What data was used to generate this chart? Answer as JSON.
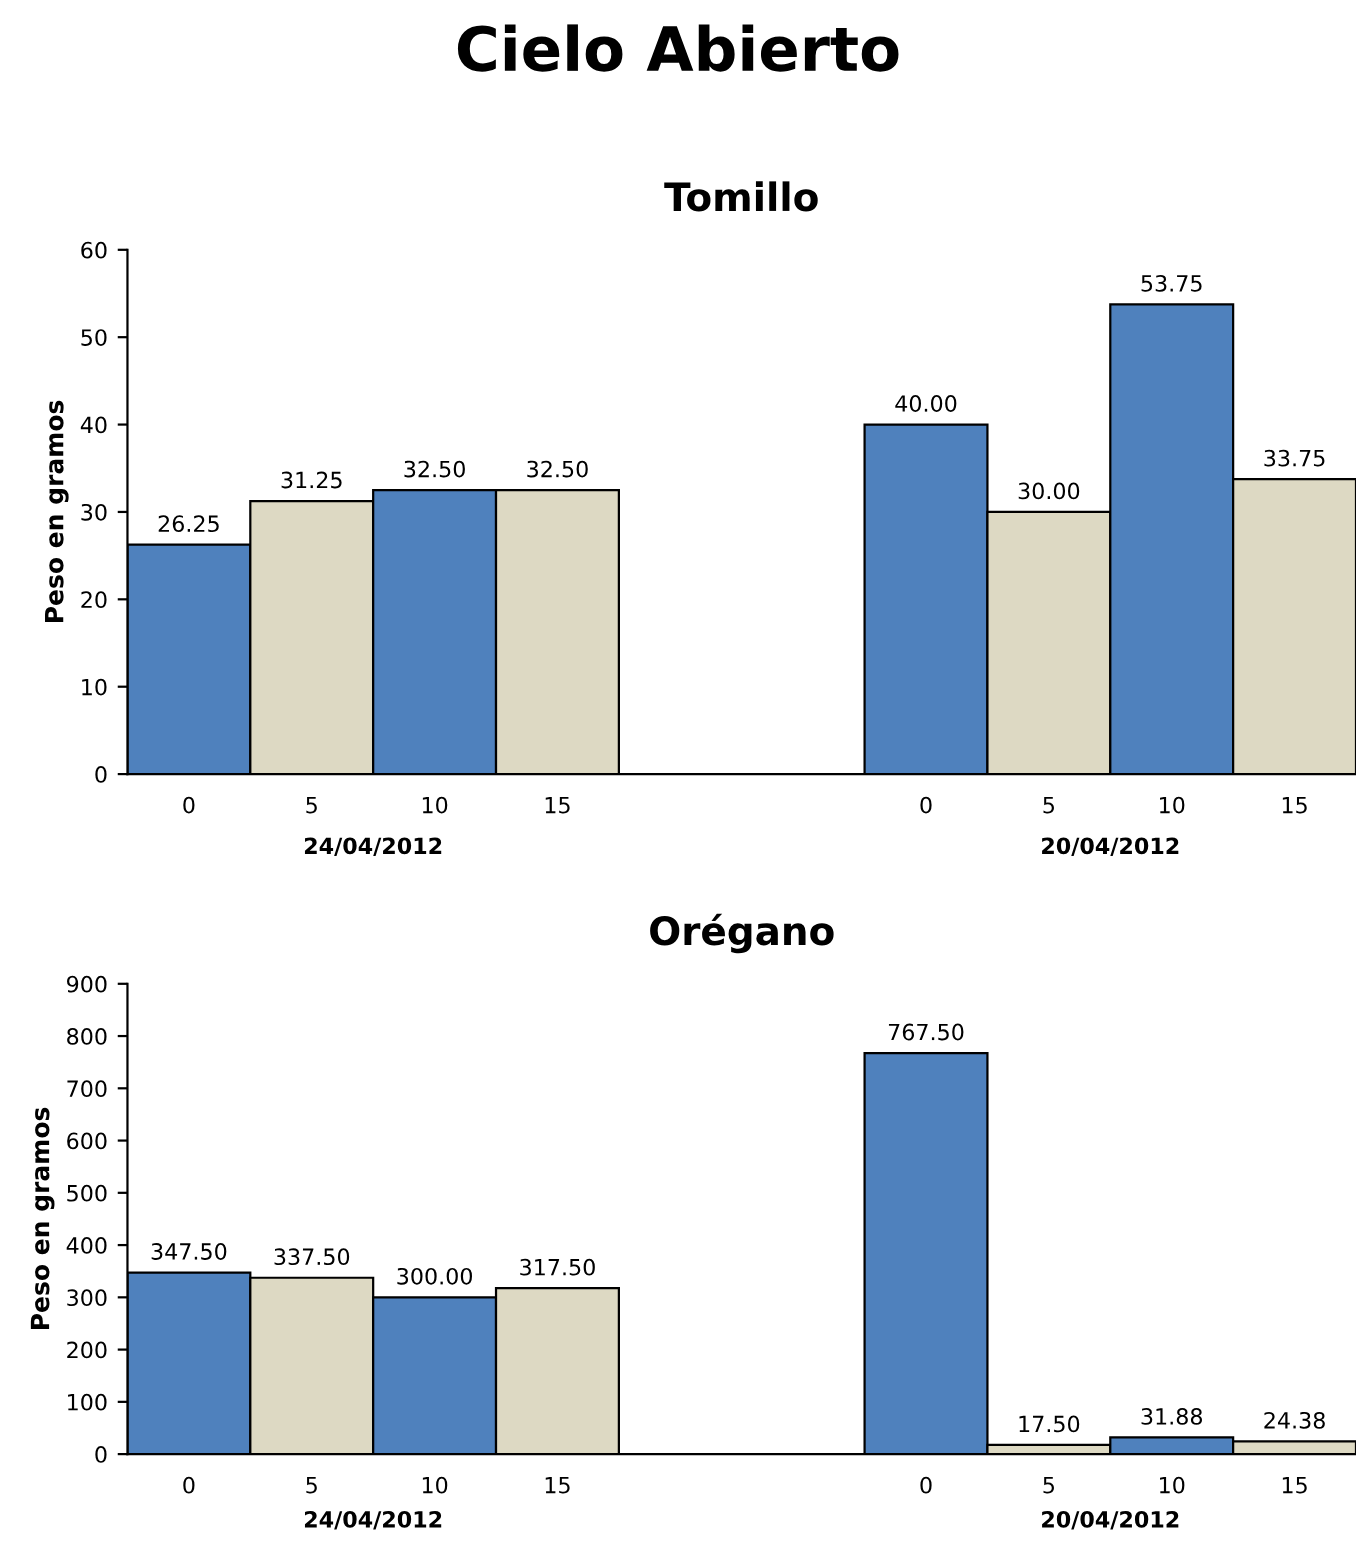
{
  "chart_data": [
    {
      "type": "bar",
      "title": "Tomillo",
      "ylabel": "Peso en gramos",
      "annotations": [
        "Cielo Abierto",
        "24/04/2012",
        "20/04/2012"
      ],
      "categories": [
        "0",
        "5",
        "10",
        "15",
        null,
        null,
        "0",
        "5",
        "10",
        "15"
      ],
      "values": [
        26.25,
        31.25,
        32.5,
        32.5,
        null,
        null,
        40,
        30,
        53.75,
        33.75
      ],
      "value_labels": [
        "26.25",
        "31.25",
        "32.50",
        "32.50",
        null,
        null,
        "40.00",
        "30.00",
        "53.75",
        "33.75"
      ],
      "colors": [
        "#4f81bd",
        "#ddd9c3",
        "#4f81bd",
        "#ddd9c3",
        null,
        null,
        "#4f81bd",
        "#ddd9c3",
        "#4f81bd",
        "#ddd9c3"
      ],
      "ylim": [
        0,
        60
      ],
      "yticks": [
        0,
        10,
        20,
        30,
        40,
        50,
        60
      ],
      "grid": false,
      "legend": false
    },
    {
      "type": "bar",
      "title": "Orégano",
      "ylabel": "Peso en gramos",
      "annotations": [
        "24/04/2012",
        "20/04/2012"
      ],
      "categories": [
        "0",
        "5",
        "10",
        "15",
        null,
        null,
        "0",
        "5",
        "10",
        "15"
      ],
      "values": [
        347.5,
        337.5,
        300,
        317.5,
        null,
        null,
        767.5,
        17.5,
        31.88,
        24.38
      ],
      "value_labels": [
        "347.50",
        "337.50",
        "300.00",
        "317.50",
        null,
        null,
        "767.50",
        "17.50",
        "31.88",
        "24.38"
      ],
      "colors": [
        "#4f81bd",
        "#ddd9c3",
        "#4f81bd",
        "#ddd9c3",
        null,
        null,
        "#4f81bd",
        "#ddd9c3",
        "#4f81bd",
        "#ddd9c3"
      ],
      "ylim": [
        0,
        900
      ],
      "yticks": [
        0,
        100,
        200,
        300,
        400,
        500,
        600,
        700,
        800,
        900
      ],
      "grid": false,
      "legend": false
    }
  ]
}
